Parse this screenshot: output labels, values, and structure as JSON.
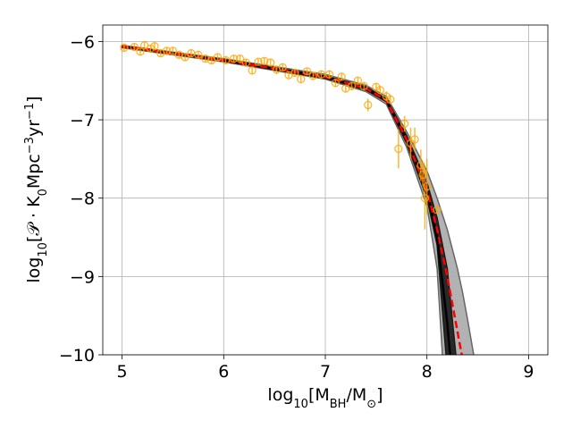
{
  "chart_data": {
    "type": "line",
    "xlabel": [
      {
        "text": "log"
      },
      {
        "text": "10",
        "shift": "sub"
      },
      {
        "text": "[M"
      },
      {
        "text": "BH",
        "shift": "sub"
      },
      {
        "text": "/M"
      },
      {
        "text": "⊙",
        "shift": "sub"
      },
      {
        "text": "]"
      }
    ],
    "ylabel": [
      {
        "text": "log"
      },
      {
        "text": "10",
        "shift": "sub"
      },
      {
        "text": "[𝒫 · K"
      },
      {
        "text": "0",
        "shift": "sub"
      },
      {
        "text": "Mpc"
      },
      {
        "text": "−3",
        "shift": "super"
      },
      {
        "text": "yr"
      },
      {
        "text": "−1",
        "shift": "super"
      },
      {
        "text": "]"
      }
    ],
    "xlim": [
      4.81,
      9.19
    ],
    "ylim": [
      -10,
      -5.79
    ],
    "xticks": [
      5,
      6,
      7,
      8,
      9
    ],
    "yticks": [
      {
        "value": -10,
        "label": "−10"
      },
      {
        "value": -9,
        "label": "−9"
      },
      {
        "value": -8,
        "label": "−8"
      },
      {
        "value": -7,
        "label": "−7"
      },
      {
        "value": -6,
        "label": "−6"
      }
    ],
    "grid": true,
    "x": [
      5,
      6,
      7,
      7.4,
      7.6,
      7.8,
      8.0,
      8.1,
      8.2,
      8.3,
      8.35,
      8.4,
      8.46
    ],
    "bands": [
      {
        "color": "#aaaaaa",
        "edge": "#666666",
        "upper": [
          -6.05,
          -6.22,
          -6.42,
          -6.56,
          -6.7,
          -7.15,
          -7.65,
          -8.0,
          -8.4,
          -8.9,
          -9.2,
          -9.55,
          -10
        ],
        "lower": [
          -6.08,
          -6.26,
          -6.48,
          -6.64,
          -6.8,
          -7.35,
          -8.1,
          -8.9,
          -11,
          -11,
          -11,
          -11,
          -11
        ]
      },
      {
        "color": "#1a1a1a",
        "edge": "#1a1a1a",
        "upper": [
          -6.06,
          -6.23,
          -6.44,
          -6.58,
          -6.73,
          -7.2,
          -7.8,
          -8.25,
          -8.9,
          -10.2,
          -11,
          -11,
          -11
        ],
        "lower": [
          -6.07,
          -6.25,
          -6.47,
          -6.62,
          -6.77,
          -7.3,
          -8.0,
          -8.6,
          -10.2,
          -11,
          -11,
          -11,
          -11
        ]
      }
    ],
    "series": [
      {
        "color": "#000000",
        "style": "solid",
        "values": [
          -6.06,
          -6.24,
          -6.45,
          -6.6,
          -6.75,
          -7.25,
          -7.9,
          -8.5,
          -9.6,
          -11,
          null,
          null,
          null
        ]
      },
      {
        "color": "#ff0000",
        "style": "dashed",
        "values": [
          -6.06,
          -6.24,
          -6.45,
          -6.6,
          -6.75,
          -7.25,
          -7.9,
          -8.4,
          -9.0,
          -9.7,
          -10.05,
          null,
          null
        ]
      }
    ],
    "points": {
      "color": "#ffa500",
      "x": [
        5.02,
        5.12,
        5.18,
        5.22,
        5.28,
        5.32,
        5.38,
        5.44,
        5.5,
        5.56,
        5.62,
        5.68,
        5.75,
        5.82,
        5.88,
        5.94,
        6.02,
        6.1,
        6.16,
        6.22,
        6.28,
        6.34,
        6.4,
        6.46,
        6.52,
        6.58,
        6.64,
        6.7,
        6.76,
        6.82,
        6.88,
        6.96,
        7.04,
        7.1,
        7.16,
        7.2,
        7.26,
        7.32,
        7.38,
        7.42,
        7.5,
        7.54,
        7.6,
        7.64,
        7.72,
        7.78,
        7.84,
        7.88,
        7.94,
        7.96,
        7.98,
        8.0,
        8.1
      ],
      "values": [
        -6.08,
        -6.07,
        -6.13,
        -6.05,
        -6.09,
        -6.06,
        -6.15,
        -6.12,
        -6.12,
        -6.17,
        -6.2,
        -6.15,
        -6.17,
        -6.22,
        -6.24,
        -6.2,
        -6.24,
        -6.22,
        -6.22,
        -6.27,
        -6.37,
        -6.26,
        -6.25,
        -6.27,
        -6.36,
        -6.33,
        -6.43,
        -6.4,
        -6.48,
        -6.38,
        -6.44,
        -6.42,
        -6.42,
        -6.53,
        -6.45,
        -6.6,
        -6.57,
        -6.5,
        -6.57,
        -6.81,
        -6.58,
        -6.62,
        -6.7,
        -6.74,
        -7.37,
        -7.05,
        -7.3,
        -7.25,
        -7.58,
        -7.7,
        -8.0,
        -7.85,
        -8.15
      ],
      "yerr": [
        0.04,
        0.04,
        0.04,
        0.04,
        0.04,
        0.04,
        0.04,
        0.04,
        0.04,
        0.04,
        0.04,
        0.04,
        0.04,
        0.04,
        0.04,
        0.04,
        0.04,
        0.04,
        0.04,
        0.04,
        0.05,
        0.04,
        0.04,
        0.04,
        0.05,
        0.04,
        0.05,
        0.04,
        0.05,
        0.04,
        0.05,
        0.05,
        0.05,
        0.05,
        0.05,
        0.05,
        0.05,
        0.05,
        0.05,
        0.08,
        0.05,
        0.05,
        0.06,
        0.06,
        0.25,
        0.1,
        0.2,
        0.15,
        0.2,
        0.15,
        0.4,
        0.35,
        0.05
      ]
    }
  }
}
